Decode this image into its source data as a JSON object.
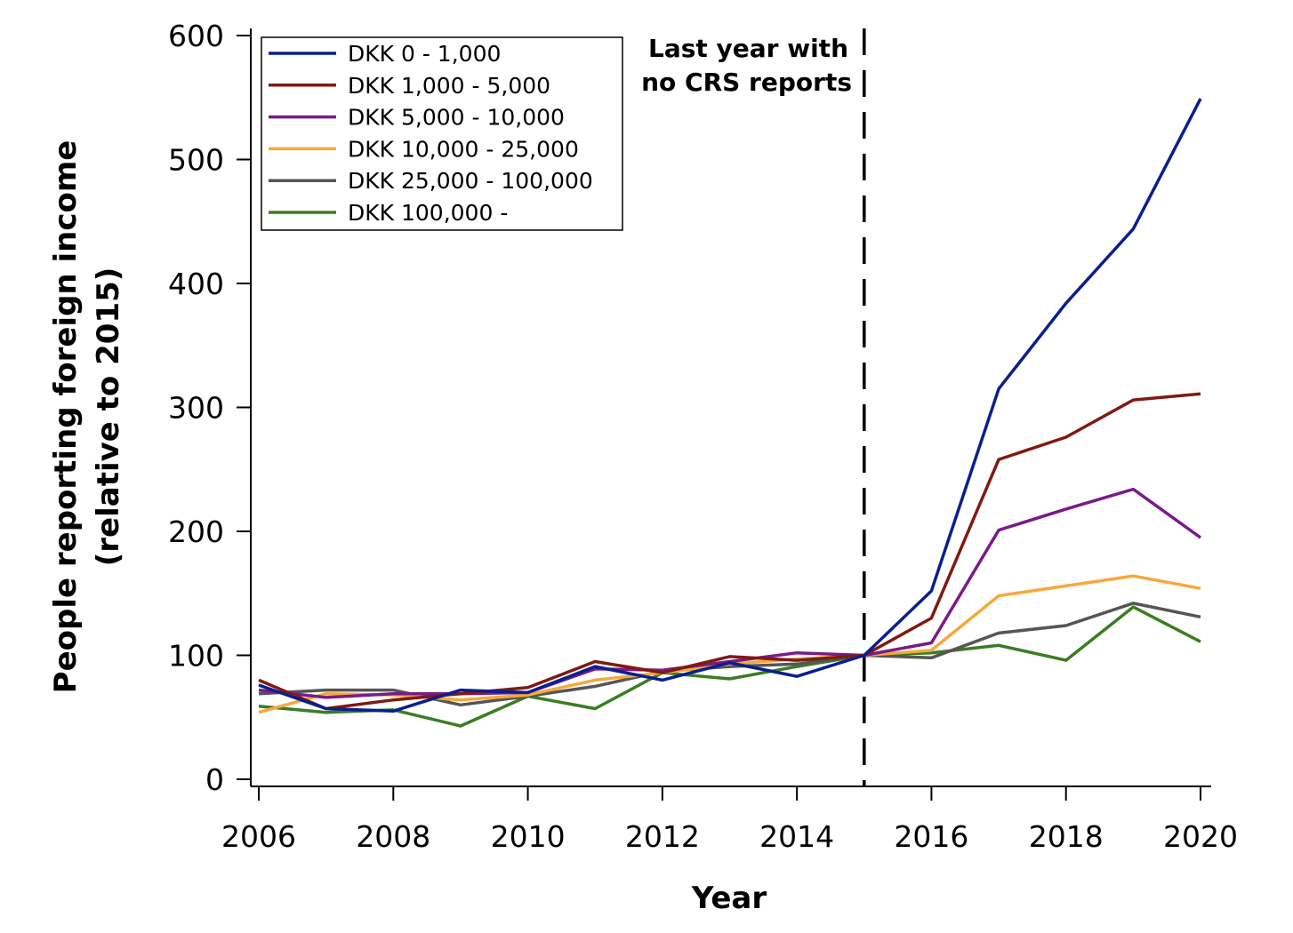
{
  "chart_data": {
    "type": "line",
    "title": "",
    "xlabel": "Year",
    "ylabel_line1": "People reporting foreign income",
    "ylabel_line2": "(relative to 2015)",
    "xlim": [
      2006,
      2020
    ],
    "ylim": [
      0,
      600
    ],
    "x_ticks": [
      2006,
      2008,
      2010,
      2012,
      2014,
      2016,
      2018,
      2020
    ],
    "y_ticks": [
      0,
      100,
      200,
      300,
      400,
      500,
      600
    ],
    "grid": false,
    "legend_position": "top-left",
    "x": [
      2006,
      2007,
      2008,
      2009,
      2010,
      2011,
      2012,
      2013,
      2014,
      2015,
      2016,
      2017,
      2018,
      2019,
      2020
    ],
    "series": [
      {
        "name": "DKK 0 - 1,000",
        "color": "#0a1f8f",
        "values": [
          76,
          57,
          55,
          72,
          70,
          91,
          80,
          94,
          83,
          100,
          152,
          315,
          384,
          444,
          549
        ]
      },
      {
        "name": "DKK 1,000 - 5,000",
        "color": "#7f1a12",
        "values": [
          80,
          57,
          64,
          69,
          74,
          95,
          86,
          99,
          96,
          100,
          130,
          258,
          276,
          306,
          311
        ]
      },
      {
        "name": "DKK 5,000 - 10,000",
        "color": "#7a1a8a",
        "values": [
          72,
          66,
          69,
          69,
          70,
          89,
          88,
          95,
          102,
          100,
          110,
          201,
          218,
          234,
          195
        ]
      },
      {
        "name": "DKK 10,000 - 25,000",
        "color": "#f5a93c",
        "values": [
          54,
          69,
          68,
          64,
          68,
          80,
          86,
          93,
          97,
          100,
          104,
          148,
          156,
          164,
          154
        ]
      },
      {
        "name": "DKK 25,000 - 100,000",
        "color": "#555555",
        "values": [
          69,
          72,
          72,
          60,
          67,
          75,
          87,
          91,
          93,
          100,
          98,
          118,
          124,
          142,
          131
        ]
      },
      {
        "name": "DKK 100,000 -",
        "color": "#3a7d22",
        "values": [
          59,
          54,
          56,
          43,
          67,
          57,
          86,
          81,
          91,
          100,
          102,
          108,
          96,
          139,
          111
        ]
      }
    ],
    "vline": {
      "x": 2015,
      "label_line1": "Last year with",
      "label_line2": "no CRS reports"
    }
  }
}
